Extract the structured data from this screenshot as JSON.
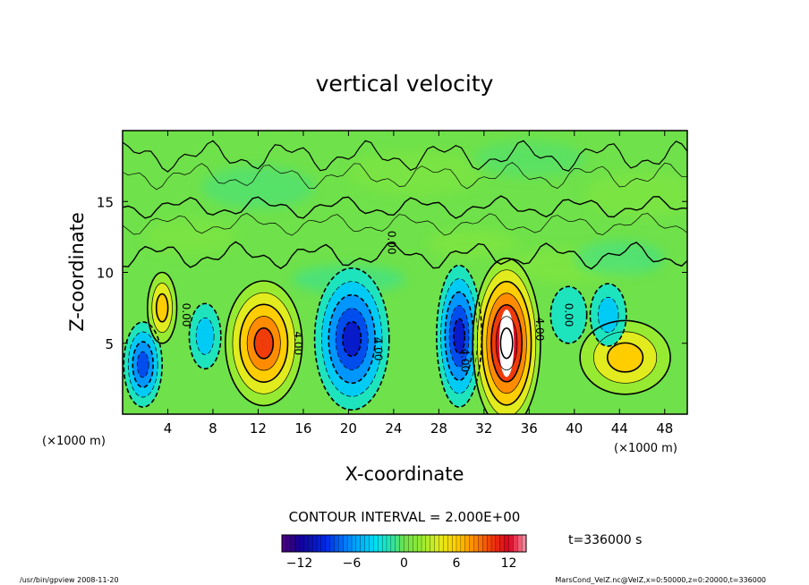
{
  "chart_data": {
    "type": "heatmap",
    "title": "vertical velocity",
    "xlabel": "X-coordinate",
    "ylabel": "Z-coordinate",
    "x_unit_left": "(×1000 m)",
    "x_unit_right": "(×1000 m)",
    "xlim": [
      0,
      50
    ],
    "ylim": [
      0,
      20
    ],
    "xticks": [
      4,
      8,
      12,
      16,
      20,
      24,
      28,
      32,
      36,
      40,
      44,
      48
    ],
    "yticks": [
      5,
      10,
      15
    ],
    "contour_interval_text": "CONTOUR INTERVAL = 2.000E+00",
    "time_text": "t=336000 s",
    "colorbar": {
      "min": -14,
      "max": 14,
      "ticks": [
        -12,
        -6,
        0,
        6,
        12
      ]
    },
    "contour_labels": [
      {
        "text": "4.00",
        "x": 15.2,
        "z": 5.0
      },
      {
        "text": "4.00",
        "x": 22.3,
        "z": 4.6
      },
      {
        "text": "4.00",
        "x": 30.0,
        "z": 3.8
      },
      {
        "text": "4.00",
        "x": 36.6,
        "z": 6.0
      },
      {
        "text": "0.00",
        "x": 39.2,
        "z": 7.0
      },
      {
        "text": "0.00",
        "x": 5.3,
        "z": 7.0
      },
      {
        "text": "0.00",
        "x": 23.5,
        "z": 12.1
      }
    ],
    "cells": [
      {
        "x": 1.8,
        "z": 3.5,
        "rx": 1.7,
        "rz": 3.0,
        "value": -8
      },
      {
        "x": 3.5,
        "z": 7.5,
        "rx": 1.3,
        "rz": 2.5,
        "value": 6
      },
      {
        "x": 7.3,
        "z": 5.5,
        "rx": 1.4,
        "rz": 2.3,
        "value": -5
      },
      {
        "x": 12.5,
        "z": 5.0,
        "rx": 3.4,
        "rz": 4.4,
        "value": 10
      },
      {
        "x": 20.3,
        "z": 5.3,
        "rx": 3.3,
        "rz": 5.0,
        "value": -10
      },
      {
        "x": 29.8,
        "z": 5.5,
        "rx": 2.0,
        "rz": 5.0,
        "value": -10
      },
      {
        "x": 34.0,
        "z": 5.0,
        "rx": 3.0,
        "rz": 6.0,
        "value": 14
      },
      {
        "x": 44.5,
        "z": 4.0,
        "rx": 4.0,
        "rz": 2.6,
        "value": 6
      },
      {
        "x": 39.5,
        "z": 7.0,
        "rx": 1.6,
        "rz": 2.0,
        "value": -3
      },
      {
        "x": 43.0,
        "z": 7.0,
        "rx": 1.6,
        "rz": 2.2,
        "value": -4
      }
    ]
  },
  "footer": {
    "left": "/usr/bin/gpview  2008-11-20",
    "right": "MarsCond_VelZ.nc@VelZ,x=0:50000,z=0:20000,t=336000"
  }
}
